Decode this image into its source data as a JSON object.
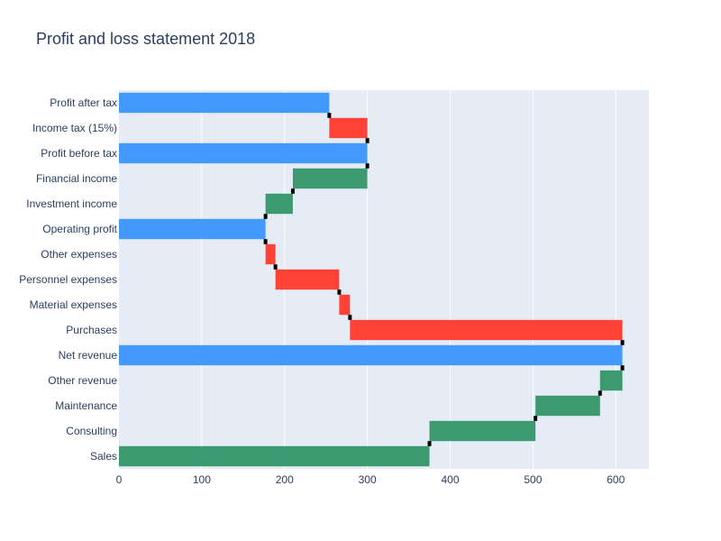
{
  "chart_data": {
    "type": "bar",
    "orientation": "horizontal",
    "subtype": "waterfall",
    "title": "Profit and loss statement 2018",
    "xlabel": "",
    "ylabel": "",
    "xlim": [
      0,
      640
    ],
    "x_ticks": [
      0,
      100,
      200,
      300,
      400,
      500,
      600
    ],
    "grid": true,
    "categories": [
      "Sales",
      "Consulting",
      "Maintenance",
      "Other revenue",
      "Net revenue",
      "Purchases",
      "Material expenses",
      "Personnel expenses",
      "Other expenses",
      "Operating profit",
      "Investment income",
      "Financial income",
      "Profit before tax",
      "Income tax (15%)",
      "Profit after tax"
    ],
    "bars": [
      {
        "category": "Sales",
        "kind": "increase",
        "start": 0,
        "end": 375
      },
      {
        "category": "Consulting",
        "kind": "increase",
        "start": 375,
        "end": 503
      },
      {
        "category": "Maintenance",
        "kind": "increase",
        "start": 503,
        "end": 581
      },
      {
        "category": "Other revenue",
        "kind": "increase",
        "start": 581,
        "end": 608
      },
      {
        "category": "Net revenue",
        "kind": "total",
        "start": 0,
        "end": 608
      },
      {
        "category": "Purchases",
        "kind": "decrease",
        "start": 608,
        "end": 279
      },
      {
        "category": "Material expenses",
        "kind": "decrease",
        "start": 279,
        "end": 266
      },
      {
        "category": "Personnel expenses",
        "kind": "decrease",
        "start": 266,
        "end": 189
      },
      {
        "category": "Other expenses",
        "kind": "decrease",
        "start": 189,
        "end": 177
      },
      {
        "category": "Operating profit",
        "kind": "total",
        "start": 0,
        "end": 177
      },
      {
        "category": "Investment income",
        "kind": "increase",
        "start": 177,
        "end": 210
      },
      {
        "category": "Financial income",
        "kind": "increase",
        "start": 210,
        "end": 300
      },
      {
        "category": "Profit before tax",
        "kind": "total",
        "start": 0,
        "end": 300
      },
      {
        "category": "Income tax (15%)",
        "kind": "decrease",
        "start": 300,
        "end": 254
      },
      {
        "category": "Profit after tax",
        "kind": "total",
        "start": 0,
        "end": 254
      }
    ],
    "colors": {
      "increase": "#3d9970",
      "decrease": "#ff4136",
      "total": "#4499ff",
      "connector": "#000000",
      "plot_bg": "#e5ecf6",
      "grid": "#ffffff",
      "text": "#2a3f5f"
    }
  }
}
